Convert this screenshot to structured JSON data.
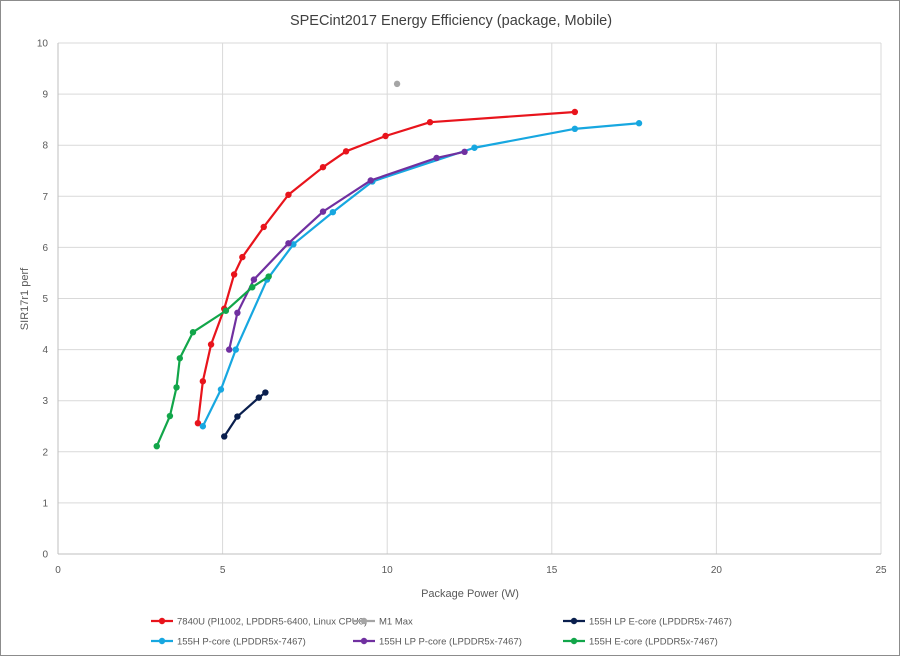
{
  "chart_data": {
    "type": "scatter",
    "title": "SPECint2017 Energy Efficiency (package, Mobile)",
    "xlabel": "Package Power (W)",
    "ylabel": "SIR17r1 perf",
    "xlim": [
      0,
      25
    ],
    "ylim": [
      0,
      10
    ],
    "xticks": [
      "0",
      "5",
      "10",
      "15",
      "20",
      "25"
    ],
    "yticks": [
      "0",
      "1",
      "2",
      "3",
      "4",
      "5",
      "6",
      "7",
      "8",
      "9",
      "10"
    ],
    "grid": true,
    "legend_position": "bottom",
    "series": [
      {
        "name": "7840U (PI1002, LPDDR5-6400, Linux CPU0)",
        "color": "#e8141c",
        "x": [
          4.25,
          4.4,
          4.65,
          5.05,
          5.35,
          5.6,
          6.25,
          7.0,
          8.05,
          8.75,
          9.95,
          11.3,
          15.7
        ],
        "y": [
          2.56,
          3.38,
          4.1,
          4.8,
          5.47,
          5.81,
          6.4,
          7.03,
          7.57,
          7.88,
          8.18,
          8.45,
          8.65
        ]
      },
      {
        "name": "M1 Max",
        "color": "#a5a5a5",
        "markers_only": true,
        "x": [
          10.3
        ],
        "y": [
          9.2
        ]
      },
      {
        "name": "155H LP E-core (LPDDR5x-7467)",
        "color": "#0a1f4e",
        "x": [
          5.05,
          5.45,
          6.1,
          6.3
        ],
        "y": [
          2.3,
          2.69,
          3.06,
          3.16
        ]
      },
      {
        "name": "155H P-core (LPDDR5x-7467)",
        "color": "#17a7e0",
        "x": [
          4.4,
          4.95,
          5.4,
          6.35,
          7.15,
          8.35,
          9.55,
          12.65,
          15.7,
          17.65
        ],
        "y": [
          2.5,
          3.22,
          4.0,
          5.37,
          6.06,
          6.69,
          7.29,
          7.95,
          8.32,
          8.43
        ]
      },
      {
        "name": "155H LP P-core (LPDDR5x-7467)",
        "color": "#7030a0",
        "x": [
          5.2,
          5.45,
          5.95,
          7.0,
          8.05,
          9.5,
          11.5,
          12.35
        ],
        "y": [
          4.0,
          4.72,
          5.37,
          6.08,
          6.7,
          7.31,
          7.75,
          7.87
        ]
      },
      {
        "name": "155H E-core (LPDDR5x-7467)",
        "color": "#12a64a",
        "x": [
          3.0,
          3.4,
          3.6,
          3.7,
          4.1,
          5.1,
          5.9,
          6.4
        ],
        "y": [
          2.11,
          2.7,
          3.26,
          3.83,
          4.34,
          4.76,
          5.22,
          5.43
        ]
      }
    ]
  }
}
